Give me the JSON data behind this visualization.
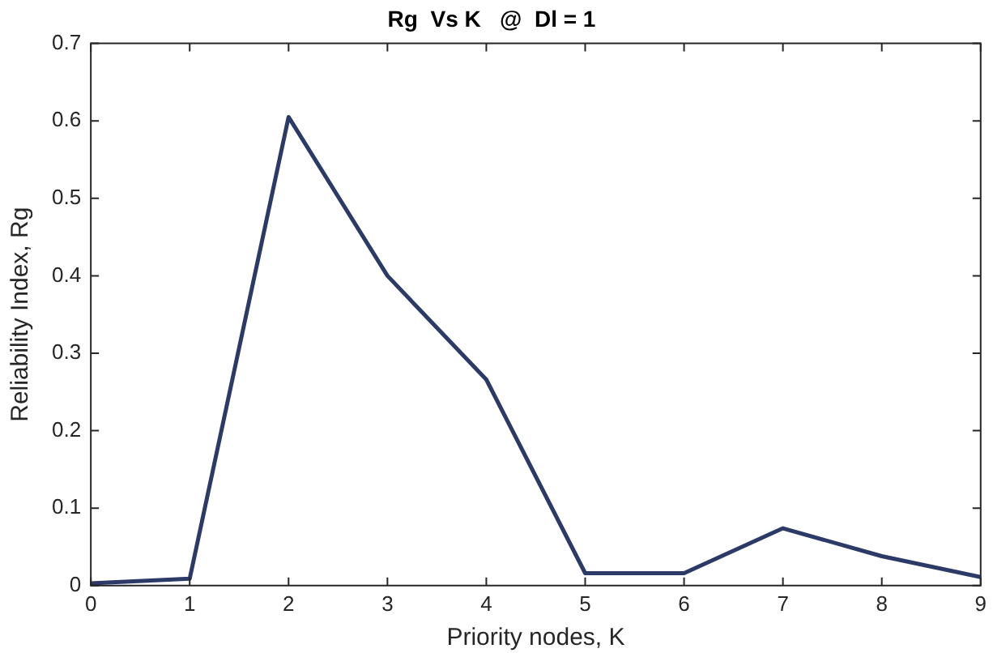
{
  "chart_data": {
    "type": "line",
    "title": "Rg  Vs K   @  Dl = 1",
    "xlabel": "Priority nodes, K",
    "ylabel": "Reliability Index, Rg",
    "x": [
      0,
      1,
      2,
      3,
      4,
      5,
      6,
      7,
      8,
      9
    ],
    "series": [
      {
        "color": "#2b3a67",
        "values": [
          0.003,
          0.009,
          0.605,
          0.4,
          0.266,
          0.016,
          0.016,
          0.074,
          0.038,
          0.011
        ]
      }
    ],
    "xlim": [
      0,
      9
    ],
    "xticks": [
      0,
      1,
      2,
      3,
      4,
      5,
      6,
      7,
      8,
      9
    ],
    "ylim": [
      0,
      0.7
    ],
    "yticks": [
      0,
      0.1,
      0.2,
      0.3,
      0.4,
      0.5,
      0.6,
      0.7
    ],
    "grid": false,
    "legend": false,
    "marker": "none",
    "line_style": "solid"
  }
}
